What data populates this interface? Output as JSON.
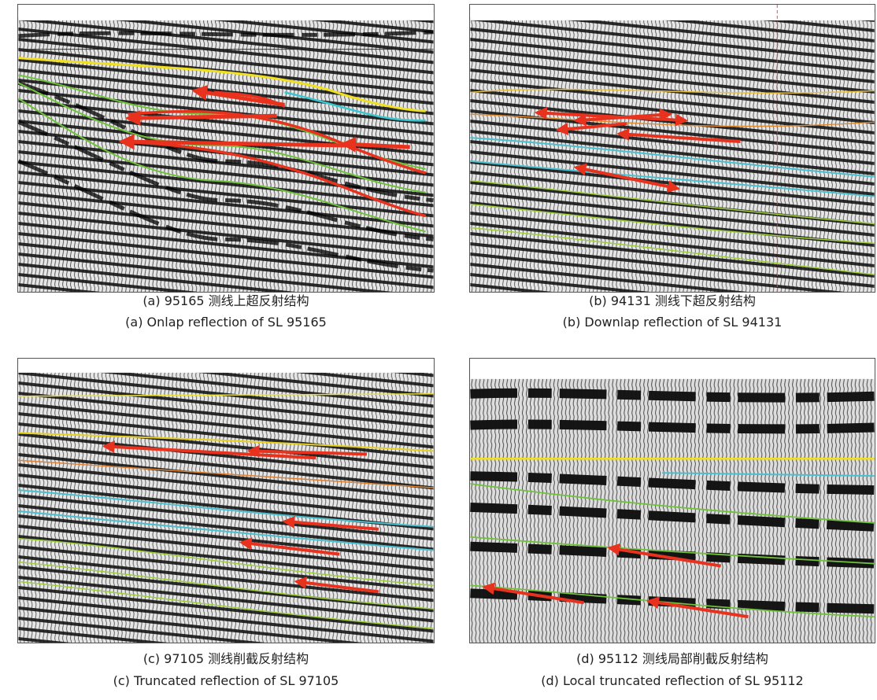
{
  "panels": [
    {
      "caption_zh": "(a) 95165 测线上超反射结构",
      "caption_en": "(a) Onlap reflection of SL 95165"
    },
    {
      "caption_zh": "(b) 94131 测线下超反射结构",
      "caption_en": "(b) Downlap reflection of SL 94131"
    },
    {
      "caption_zh": "(c) 97105 测线削截反射结构",
      "caption_en": "(c) Truncated reflection of SL 97105"
    },
    {
      "caption_zh": "(d) 95112 测线局部削截反射结构",
      "caption_en": "(d) Local truncated reflection of SL 95112"
    }
  ]
}
